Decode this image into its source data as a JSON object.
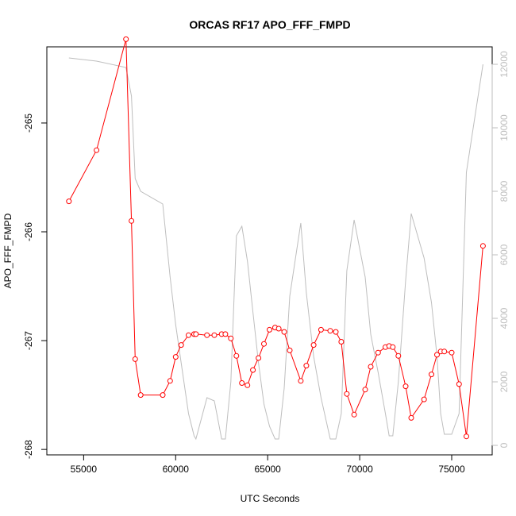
{
  "chart_data": {
    "type": "line",
    "title": "ORCAS RF17 APO_FFF_FMPD",
    "xlabel": "UTC Seconds",
    "ylabel": "APO_FFF_FMPD",
    "xlim": [
      53000,
      77200
    ],
    "ylim": [
      -268.05,
      -264.3
    ],
    "y2lim": [
      -300,
      12550
    ],
    "x_ticks": [
      55000,
      60000,
      65000,
      70000,
      75000
    ],
    "x_tick_labels": [
      "55000",
      "60000",
      "65000",
      "70000",
      "75000"
    ],
    "y_ticks": [
      -268,
      -267,
      -266,
      -265
    ],
    "y_tick_labels": [
      "-268",
      "-267",
      "-266",
      "-265"
    ],
    "y2_ticks": [
      0,
      2000,
      4000,
      6000,
      8000,
      10000,
      12000
    ],
    "y2_tick_labels": [
      "0",
      "2000",
      "4000",
      "6000",
      "8000",
      "10000",
      "12000"
    ],
    "colors": {
      "primary": "#ff0000",
      "secondary": "#bebebe",
      "axis": "#000000"
    },
    "grid": false,
    "series": [
      {
        "axis": "left",
        "style": "line+points",
        "x": [
          54200,
          55700,
          57300,
          57600,
          57800,
          58100,
          59300,
          59700,
          60000,
          60300,
          60700,
          61000,
          61100,
          61700,
          62100,
          62500,
          62700,
          63000,
          63300,
          63600,
          63900,
          64200,
          64500,
          64800,
          65100,
          65400,
          65600,
          65900,
          66200,
          66800,
          67100,
          67500,
          67900,
          68400,
          68700,
          69000,
          69300,
          69700,
          70300,
          70600,
          71000,
          71400,
          71600,
          71800,
          72100,
          72500,
          72800,
          73500,
          73900,
          74200,
          74400,
          74600,
          75000,
          75400,
          75800,
          76700
        ],
        "y": [
          -265.72,
          -265.25,
          -264.23,
          -265.9,
          -267.17,
          -267.5,
          -267.5,
          -267.37,
          -267.15,
          -267.04,
          -266.95,
          -266.94,
          -266.94,
          -266.95,
          -266.95,
          -266.94,
          -266.94,
          -266.98,
          -267.14,
          -267.39,
          -267.41,
          -267.27,
          -267.16,
          -267.03,
          -266.9,
          -266.88,
          -266.89,
          -266.92,
          -267.09,
          -267.37,
          -267.23,
          -267.04,
          -266.9,
          -266.91,
          -266.92,
          -267.01,
          -267.49,
          -267.68,
          -267.45,
          -267.24,
          -267.11,
          -267.06,
          -267.05,
          -267.06,
          -267.14,
          -267.42,
          -267.71,
          -267.54,
          -267.31,
          -267.13,
          -267.1,
          -267.1,
          -267.11,
          -267.4,
          -267.88,
          -266.13
        ]
      },
      {
        "axis": "right",
        "style": "line",
        "x": [
          54200,
          55700,
          57300,
          57600,
          57800,
          58100,
          59300,
          59700,
          60000,
          60300,
          60700,
          61000,
          61100,
          61700,
          62100,
          62500,
          62700,
          63000,
          63300,
          63600,
          63900,
          64200,
          64500,
          64800,
          65100,
          65400,
          65600,
          65900,
          66200,
          66800,
          67100,
          67500,
          67900,
          68400,
          68700,
          69000,
          69300,
          69700,
          70300,
          70600,
          71000,
          71400,
          71600,
          71800,
          72100,
          72500,
          72800,
          73500,
          73900,
          74200,
          74400,
          74600,
          75000,
          75400,
          75800,
          76700
        ],
        "y": [
          12200,
          12100,
          11900,
          11000,
          8400,
          8000,
          7600,
          5300,
          3800,
          2600,
          1000,
          300,
          200,
          1500,
          1400,
          200,
          200,
          2000,
          6600,
          6900,
          5800,
          4200,
          2600,
          1300,
          600,
          200,
          200,
          1800,
          4700,
          7000,
          4800,
          2800,
          1500,
          200,
          200,
          1000,
          5500,
          7100,
          5300,
          3500,
          2300,
          1000,
          300,
          300,
          2000,
          5200,
          7300,
          5900,
          4500,
          2800,
          1000,
          350,
          350,
          1000,
          8600,
          12000
        ]
      }
    ]
  }
}
